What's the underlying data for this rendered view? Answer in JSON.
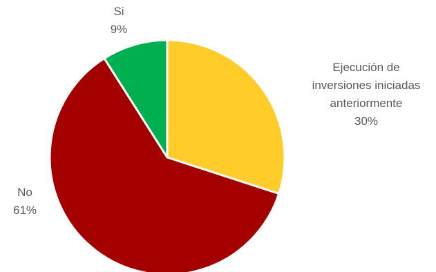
{
  "chart_data": {
    "type": "pie",
    "slices": [
      {
        "label_lines": [
          "Ejecución de",
          "inversiones iniciadas",
          "anteriormente"
        ],
        "value": 30,
        "value_label": "30%",
        "color": "#ffcc29"
      },
      {
        "label_lines": [
          "No"
        ],
        "value": 61,
        "value_label": "61%",
        "color": "#a50000"
      },
      {
        "label_lines": [
          "Si"
        ],
        "value": 9,
        "value_label": "9%",
        "color": "#00b050"
      }
    ]
  }
}
